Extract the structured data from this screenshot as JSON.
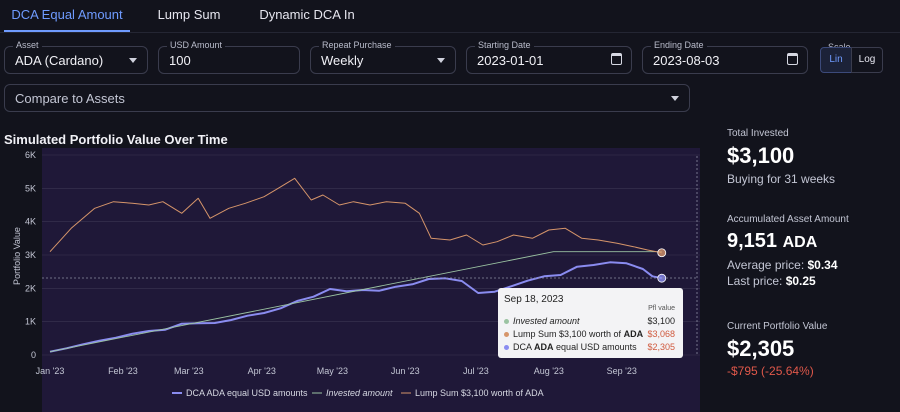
{
  "tabs": [
    {
      "label": "DCA Equal Amount",
      "active": true
    },
    {
      "label": "Lump Sum",
      "active": false
    },
    {
      "label": "Dynamic DCA In",
      "active": false
    }
  ],
  "form": {
    "asset": {
      "label": "Asset",
      "value": "ADA (Cardano)"
    },
    "usd": {
      "label": "USD Amount",
      "value": "100"
    },
    "repeat": {
      "label": "Repeat Purchase",
      "value": "Weekly"
    },
    "start": {
      "label": "Starting Date",
      "value": "2023-01-01"
    },
    "end": {
      "label": "Ending Date",
      "value": "2023-08-03"
    },
    "scale": {
      "label": "Scale",
      "options": [
        "Lin",
        "Log"
      ],
      "selected": "Lin"
    },
    "compare": {
      "placeholder": "Compare to Assets"
    }
  },
  "chart": {
    "title": "Simulated Portfolio Value Over Time",
    "ylabel": "Portfolio Value",
    "legend": [
      "DCA ADA equal USD amounts",
      "Invested amount",
      "Lump Sum $3,100 worth of ADA"
    ]
  },
  "chart_data": {
    "type": "line",
    "title": "Simulated Portfolio Value Over Time",
    "ylabel": "Portfolio Value",
    "x_ticks": [
      "Jan '23",
      "Feb '23",
      "Mar '23",
      "Apr '23",
      "May '23",
      "Jun '23",
      "Jul '23",
      "Aug '23",
      "Sep '23"
    ],
    "y_ticks": [
      "0",
      "1K",
      "2K",
      "3K",
      "4K",
      "5K",
      "6K"
    ],
    "ylim": [
      0,
      6000
    ],
    "colors": {
      "dca": "#8a8cf0",
      "invested": "#9bc3a2",
      "lump": "#d6956a"
    },
    "series": [
      {
        "name": "DCA ADA equal USD amounts",
        "key": "dca",
        "values": [
          [
            "2023-01-01",
            100
          ],
          [
            "2023-01-08",
            200
          ],
          [
            "2023-01-15",
            320
          ],
          [
            "2023-01-22",
            430
          ],
          [
            "2023-01-29",
            520
          ],
          [
            "2023-02-05",
            640
          ],
          [
            "2023-02-12",
            720
          ],
          [
            "2023-02-19",
            760
          ],
          [
            "2023-02-26",
            940
          ],
          [
            "2023-03-05",
            950
          ],
          [
            "2023-03-12",
            960
          ],
          [
            "2023-03-19",
            1050
          ],
          [
            "2023-03-26",
            1180
          ],
          [
            "2023-04-02",
            1260
          ],
          [
            "2023-04-09",
            1400
          ],
          [
            "2023-04-16",
            1620
          ],
          [
            "2023-04-23",
            1750
          ],
          [
            "2023-04-30",
            1980
          ],
          [
            "2023-05-07",
            1910
          ],
          [
            "2023-05-14",
            1950
          ],
          [
            "2023-05-21",
            1930
          ],
          [
            "2023-05-28",
            2050
          ],
          [
            "2023-06-04",
            2120
          ],
          [
            "2023-06-11",
            2280
          ],
          [
            "2023-06-18",
            2300
          ],
          [
            "2023-06-25",
            2220
          ],
          [
            "2023-07-02",
            1860
          ],
          [
            "2023-07-09",
            1900
          ],
          [
            "2023-07-16",
            2060
          ],
          [
            "2023-07-23",
            2230
          ],
          [
            "2023-07-30",
            2360
          ],
          [
            "2023-08-06",
            2400
          ],
          [
            "2023-08-13",
            2650
          ],
          [
            "2023-08-20",
            2700
          ],
          [
            "2023-08-27",
            2780
          ],
          [
            "2023-09-03",
            2750
          ],
          [
            "2023-09-10",
            2580
          ],
          [
            "2023-09-14",
            2360
          ],
          [
            "2023-09-18",
            2305
          ]
        ]
      },
      {
        "name": "Invested amount",
        "key": "invested",
        "values": [
          [
            "2023-01-01",
            100
          ],
          [
            "2023-08-03",
            3100
          ],
          [
            "2023-09-18",
            3100
          ]
        ]
      },
      {
        "name": "Lump Sum $3,100 worth of ADA",
        "key": "lump",
        "values": [
          [
            "2023-01-01",
            3100
          ],
          [
            "2023-01-10",
            3800
          ],
          [
            "2023-01-20",
            4400
          ],
          [
            "2023-01-28",
            4600
          ],
          [
            "2023-02-05",
            4550
          ],
          [
            "2023-02-12",
            4500
          ],
          [
            "2023-02-18",
            4600
          ],
          [
            "2023-02-26",
            4250
          ],
          [
            "2023-03-05",
            4700
          ],
          [
            "2023-03-10",
            4100
          ],
          [
            "2023-03-18",
            4400
          ],
          [
            "2023-03-25",
            4550
          ],
          [
            "2023-04-02",
            4750
          ],
          [
            "2023-04-08",
            5000
          ],
          [
            "2023-04-15",
            5300
          ],
          [
            "2023-04-22",
            4650
          ],
          [
            "2023-04-27",
            4800
          ],
          [
            "2023-05-04",
            4500
          ],
          [
            "2023-05-10",
            4600
          ],
          [
            "2023-05-17",
            4500
          ],
          [
            "2023-05-24",
            4600
          ],
          [
            "2023-06-01",
            4550
          ],
          [
            "2023-06-07",
            4250
          ],
          [
            "2023-06-12",
            3500
          ],
          [
            "2023-06-20",
            3450
          ],
          [
            "2023-06-27",
            3600
          ],
          [
            "2023-07-04",
            3300
          ],
          [
            "2023-07-10",
            3400
          ],
          [
            "2023-07-17",
            3600
          ],
          [
            "2023-07-25",
            3500
          ],
          [
            "2023-08-01",
            3750
          ],
          [
            "2023-08-08",
            3800
          ],
          [
            "2023-08-15",
            3500
          ],
          [
            "2023-08-22",
            3450
          ],
          [
            "2023-08-30",
            3350
          ],
          [
            "2023-09-06",
            3250
          ],
          [
            "2023-09-12",
            3150
          ],
          [
            "2023-09-18",
            3068
          ]
        ]
      }
    ],
    "tooltip": {
      "date": "Sep 18, 2023",
      "header": "Pfl value",
      "rows": [
        {
          "label": "Invested amount",
          "value": "$3,100"
        },
        {
          "label": "Lump Sum $3,100 worth of",
          "asset": "ADA",
          "value": "$3,068"
        },
        {
          "label": "DCA",
          "asset": "ADA",
          "label2": "equal USD amounts",
          "value": "$2,305"
        }
      ]
    }
  },
  "stats": {
    "total_invested_label": "Total Invested",
    "total_invested": "$3,100",
    "buying_for": "Buying for 31 weeks",
    "accumulated_label": "Accumulated Asset Amount",
    "accumulated_amount": "9,151",
    "accumulated_unit": "ADA",
    "avg_price_label": "Average price:",
    "avg_price": "$0.34",
    "last_price_label": "Last price:",
    "last_price": "$0.25",
    "current_value_label": "Current Portfolio Value",
    "current_value": "$2,305",
    "change": "-$795 (-25.64%)",
    "change_color": "#e0584a"
  }
}
